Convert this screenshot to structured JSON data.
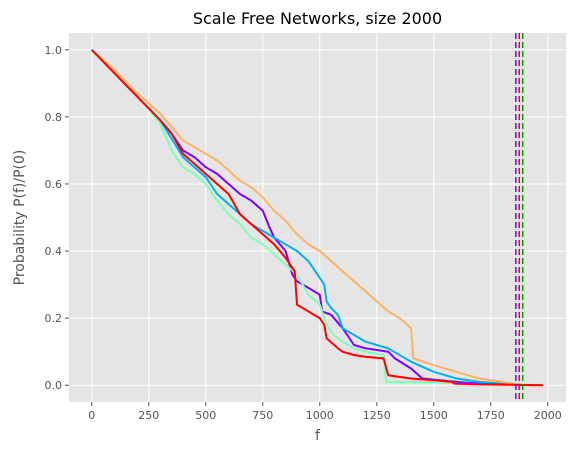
{
  "chart_data": {
    "type": "line",
    "title": "Scale Free Networks, size 2000",
    "xlabel": "f",
    "ylabel": "Probability P(f)/P(0)",
    "xlim": [
      -100,
      2080
    ],
    "ylim": [
      -0.05,
      1.05
    ],
    "xticks": [
      0,
      250,
      500,
      750,
      1000,
      1250,
      1500,
      1750,
      2000
    ],
    "yticks": [
      0.0,
      0.2,
      0.4,
      0.6,
      0.8,
      1.0
    ],
    "grid": true,
    "style": "ggplot",
    "series": [
      {
        "color": "#8000ff",
        "values": [
          [
            0,
            1.0
          ],
          [
            100,
            0.93
          ],
          [
            200,
            0.86
          ],
          [
            300,
            0.79
          ],
          [
            350,
            0.75
          ],
          [
            400,
            0.7
          ],
          [
            450,
            0.68
          ],
          [
            500,
            0.65
          ],
          [
            550,
            0.63
          ],
          [
            600,
            0.6
          ],
          [
            650,
            0.57
          ],
          [
            700,
            0.55
          ],
          [
            750,
            0.52
          ],
          [
            780,
            0.47
          ],
          [
            800,
            0.44
          ],
          [
            850,
            0.4
          ],
          [
            880,
            0.33
          ],
          [
            900,
            0.31
          ],
          [
            950,
            0.29
          ],
          [
            1000,
            0.27
          ],
          [
            1010,
            0.22
          ],
          [
            1050,
            0.21
          ],
          [
            1100,
            0.17
          ],
          [
            1150,
            0.12
          ],
          [
            1200,
            0.11
          ],
          [
            1300,
            0.1
          ],
          [
            1330,
            0.08
          ],
          [
            1400,
            0.05
          ],
          [
            1450,
            0.02
          ],
          [
            1600,
            0.01
          ],
          [
            1700,
            0.005
          ],
          [
            1880,
            0.0
          ]
        ]
      },
      {
        "color": "#00b0f0",
        "values": [
          [
            0,
            1.0
          ],
          [
            100,
            0.93
          ],
          [
            200,
            0.86
          ],
          [
            300,
            0.79
          ],
          [
            400,
            0.68
          ],
          [
            450,
            0.65
          ],
          [
            500,
            0.62
          ],
          [
            550,
            0.57
          ],
          [
            600,
            0.54
          ],
          [
            650,
            0.51
          ],
          [
            700,
            0.48
          ],
          [
            750,
            0.46
          ],
          [
            800,
            0.44
          ],
          [
            850,
            0.42
          ],
          [
            900,
            0.4
          ],
          [
            950,
            0.37
          ],
          [
            1000,
            0.32
          ],
          [
            1020,
            0.3
          ],
          [
            1030,
            0.25
          ],
          [
            1050,
            0.23
          ],
          [
            1080,
            0.21
          ],
          [
            1100,
            0.17
          ],
          [
            1150,
            0.15
          ],
          [
            1200,
            0.13
          ],
          [
            1250,
            0.12
          ],
          [
            1300,
            0.11
          ],
          [
            1400,
            0.07
          ],
          [
            1500,
            0.04
          ],
          [
            1600,
            0.02
          ],
          [
            1700,
            0.01
          ],
          [
            1890,
            0.0
          ]
        ]
      },
      {
        "color": "#80ffb4",
        "values": [
          [
            0,
            1.0
          ],
          [
            100,
            0.93
          ],
          [
            200,
            0.87
          ],
          [
            300,
            0.78
          ],
          [
            350,
            0.7
          ],
          [
            400,
            0.65
          ],
          [
            450,
            0.63
          ],
          [
            500,
            0.6
          ],
          [
            550,
            0.55
          ],
          [
            600,
            0.51
          ],
          [
            650,
            0.48
          ],
          [
            700,
            0.44
          ],
          [
            750,
            0.42
          ],
          [
            800,
            0.39
          ],
          [
            850,
            0.36
          ],
          [
            900,
            0.33
          ],
          [
            950,
            0.27
          ],
          [
            1000,
            0.24
          ],
          [
            1030,
            0.18
          ],
          [
            1060,
            0.15
          ],
          [
            1100,
            0.13
          ],
          [
            1150,
            0.11
          ],
          [
            1200,
            0.1
          ],
          [
            1280,
            0.09
          ],
          [
            1290,
            0.01
          ],
          [
            1400,
            0.01
          ],
          [
            1500,
            0.008
          ],
          [
            1600,
            0.005
          ],
          [
            1700,
            0.003
          ],
          [
            1870,
            0.0
          ]
        ]
      },
      {
        "color": "#ffb360",
        "values": [
          [
            0,
            1.0
          ],
          [
            100,
            0.94
          ],
          [
            200,
            0.87
          ],
          [
            300,
            0.81
          ],
          [
            350,
            0.77
          ],
          [
            400,
            0.73
          ],
          [
            450,
            0.71
          ],
          [
            500,
            0.69
          ],
          [
            550,
            0.67
          ],
          [
            600,
            0.64
          ],
          [
            650,
            0.61
          ],
          [
            700,
            0.59
          ],
          [
            750,
            0.56
          ],
          [
            800,
            0.52
          ],
          [
            850,
            0.49
          ],
          [
            900,
            0.45
          ],
          [
            950,
            0.42
          ],
          [
            1000,
            0.4
          ],
          [
            1050,
            0.37
          ],
          [
            1100,
            0.34
          ],
          [
            1150,
            0.31
          ],
          [
            1200,
            0.28
          ],
          [
            1250,
            0.25
          ],
          [
            1300,
            0.22
          ],
          [
            1350,
            0.2
          ],
          [
            1400,
            0.17
          ],
          [
            1410,
            0.08
          ],
          [
            1500,
            0.06
          ],
          [
            1600,
            0.04
          ],
          [
            1700,
            0.02
          ],
          [
            1800,
            0.01
          ],
          [
            1900,
            0.0
          ]
        ]
      },
      {
        "color": "#ff0000",
        "values": [
          [
            0,
            1.0
          ],
          [
            100,
            0.93
          ],
          [
            200,
            0.86
          ],
          [
            300,
            0.79
          ],
          [
            350,
            0.75
          ],
          [
            400,
            0.69
          ],
          [
            450,
            0.66
          ],
          [
            500,
            0.63
          ],
          [
            550,
            0.6
          ],
          [
            600,
            0.57
          ],
          [
            650,
            0.51
          ],
          [
            700,
            0.48
          ],
          [
            750,
            0.45
          ],
          [
            800,
            0.42
          ],
          [
            850,
            0.38
          ],
          [
            890,
            0.34
          ],
          [
            900,
            0.24
          ],
          [
            950,
            0.22
          ],
          [
            1000,
            0.2
          ],
          [
            1020,
            0.18
          ],
          [
            1030,
            0.14
          ],
          [
            1080,
            0.11
          ],
          [
            1100,
            0.1
          ],
          [
            1150,
            0.09
          ],
          [
            1200,
            0.085
          ],
          [
            1280,
            0.08
          ],
          [
            1300,
            0.03
          ],
          [
            1400,
            0.02
          ],
          [
            1500,
            0.015
          ],
          [
            1580,
            0.01
          ],
          [
            1590,
            0.005
          ],
          [
            1700,
            0.003
          ],
          [
            1980,
            0.0
          ]
        ]
      }
    ],
    "vlines": [
      {
        "x": 1860,
        "color": "#8000ff",
        "dash": true
      },
      {
        "x": 1875,
        "color": "#ff0000",
        "dash": true
      },
      {
        "x": 1890,
        "color": "#009900",
        "dash": true
      }
    ]
  }
}
